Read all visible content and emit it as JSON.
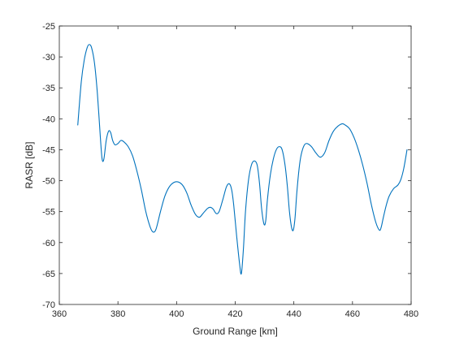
{
  "chart_data": {
    "type": "line",
    "title": "",
    "xlabel": "Ground Range [km]",
    "ylabel": "RASR [dB]",
    "xlim": [
      360,
      480
    ],
    "ylim": [
      -70,
      -25
    ],
    "x_ticks": [
      360,
      380,
      400,
      420,
      440,
      460,
      480
    ],
    "y_ticks": [
      -70,
      -65,
      -60,
      -55,
      -50,
      -45,
      -40,
      -35,
      -30,
      -25
    ],
    "x_tick_labels": [
      "360",
      "380",
      "400",
      "420",
      "440",
      "460",
      "480"
    ],
    "y_tick_labels": [
      "-70",
      "-65",
      "-60",
      "-55",
      "-50",
      "-45",
      "-40",
      "-35",
      "-30",
      "-25"
    ],
    "grid": false,
    "line_color": "#0072BD",
    "series": [
      {
        "x": [
          366.3,
          367.5,
          368.5,
          369.5,
          370.2,
          371,
          372,
          373,
          374,
          374.6,
          375.2,
          376,
          376.8,
          377.5,
          378.2,
          379,
          380,
          381,
          382,
          383.5,
          385,
          386.5,
          388,
          389.5,
          391,
          392,
          393,
          394.5,
          396,
          397.5,
          399,
          400.5,
          402,
          403.5,
          405,
          406.5,
          407.8,
          409,
          410.5,
          411.5,
          412.5,
          413.5,
          414.5,
          415.8,
          417,
          418,
          418.8,
          419.5,
          420.5,
          421.5,
          422.1,
          422.8,
          423.5,
          424.5,
          425.5,
          426.5,
          427.5,
          428.3,
          429,
          429.8,
          430.4,
          431,
          432,
          433,
          434,
          435,
          436,
          437,
          437.8,
          438.5,
          439.2,
          439.8,
          440.4,
          441,
          441.8,
          442.5,
          443.5,
          444.5,
          446,
          447.5,
          449,
          450.5,
          452,
          453.5,
          455,
          456.5,
          457.5,
          459,
          460.5,
          462,
          463.5,
          465,
          466.5,
          468,
          469.2,
          469.8,
          470.5,
          471.5,
          472.5,
          474,
          475.5,
          476.5,
          477.5,
          478.6
        ],
        "y": [
          -41,
          -34,
          -30.5,
          -28.5,
          -28,
          -28.5,
          -31,
          -36,
          -43,
          -46.5,
          -46.5,
          -43.5,
          -42,
          -42.2,
          -43.5,
          -44.2,
          -44,
          -43.5,
          -43.7,
          -44.5,
          -46,
          -48.5,
          -51.5,
          -55,
          -57.5,
          -58.3,
          -57.8,
          -55,
          -52.5,
          -51,
          -50.3,
          -50.2,
          -50.7,
          -52,
          -54,
          -55.5,
          -55.9,
          -55.3,
          -54.5,
          -54.3,
          -54.6,
          -55.3,
          -55,
          -53,
          -51,
          -50.5,
          -51.5,
          -54,
          -59,
          -63.5,
          -65,
          -61,
          -55,
          -50,
          -47.5,
          -46.8,
          -47.5,
          -50.5,
          -54.5,
          -57,
          -56.5,
          -53,
          -49,
          -46.5,
          -45,
          -44.5,
          -45,
          -47.5,
          -51,
          -55,
          -57.5,
          -58,
          -56,
          -52,
          -48,
          -45.8,
          -44.3,
          -44,
          -44.5,
          -45.5,
          -46.2,
          -45.5,
          -43.5,
          -42,
          -41.2,
          -40.8,
          -41,
          -41.6,
          -43,
          -45,
          -47.5,
          -50.5,
          -54,
          -56.8,
          -58,
          -57.5,
          -56,
          -54,
          -52.5,
          -51.3,
          -50.7,
          -49.8,
          -48,
          -45
        ]
      }
    ]
  }
}
